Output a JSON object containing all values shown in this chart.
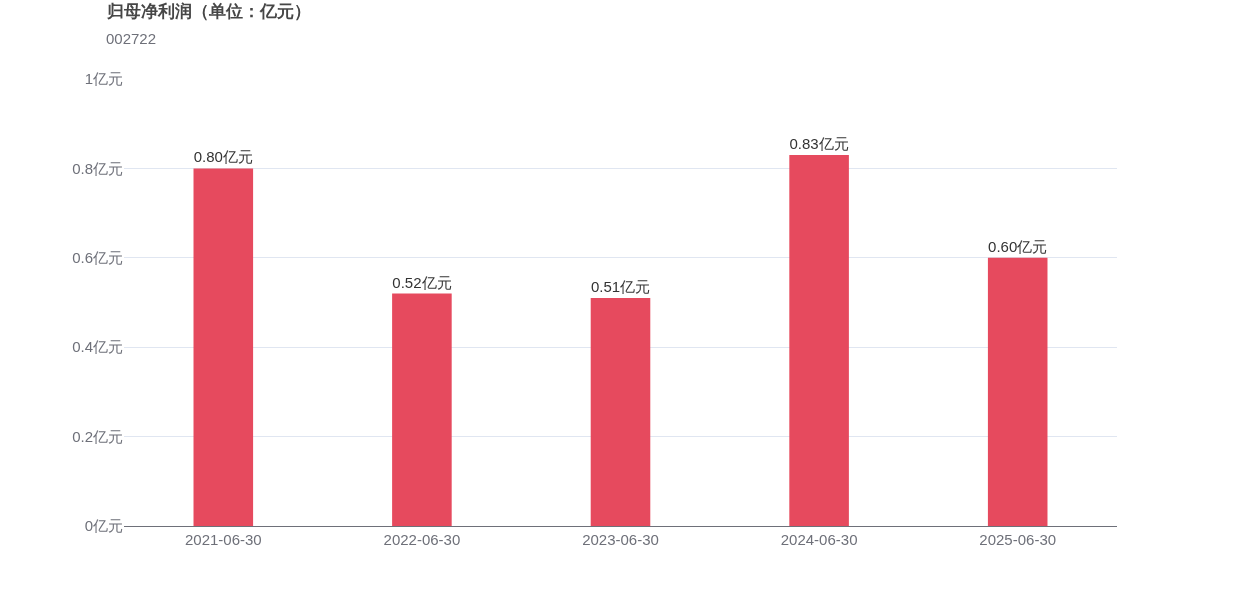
{
  "chart_data": {
    "type": "bar",
    "title": "归母净利润（单位：亿元）",
    "subtitle": "002722",
    "categories": [
      "2021-06-30",
      "2022-06-30",
      "2023-06-30",
      "2024-06-30",
      "2025-06-30"
    ],
    "values": [
      0.8,
      0.52,
      0.51,
      0.83,
      0.6
    ],
    "value_labels": [
      "0.80亿元",
      "0.52亿元",
      "0.51亿元",
      "0.83亿元",
      "0.60亿元"
    ],
    "color": "#e64a5e",
    "ylim": [
      0,
      1
    ],
    "yticks": [
      {
        "value": 0,
        "label": "0亿元"
      },
      {
        "value": 0.2,
        "label": "0.2亿元"
      },
      {
        "value": 0.4,
        "label": "0.4亿元"
      },
      {
        "value": 0.6,
        "label": "0.6亿元"
      },
      {
        "value": 0.8,
        "label": "0.8亿元"
      },
      {
        "value": 1,
        "label": "1亿元"
      }
    ],
    "grid": "y",
    "legend": false
  }
}
